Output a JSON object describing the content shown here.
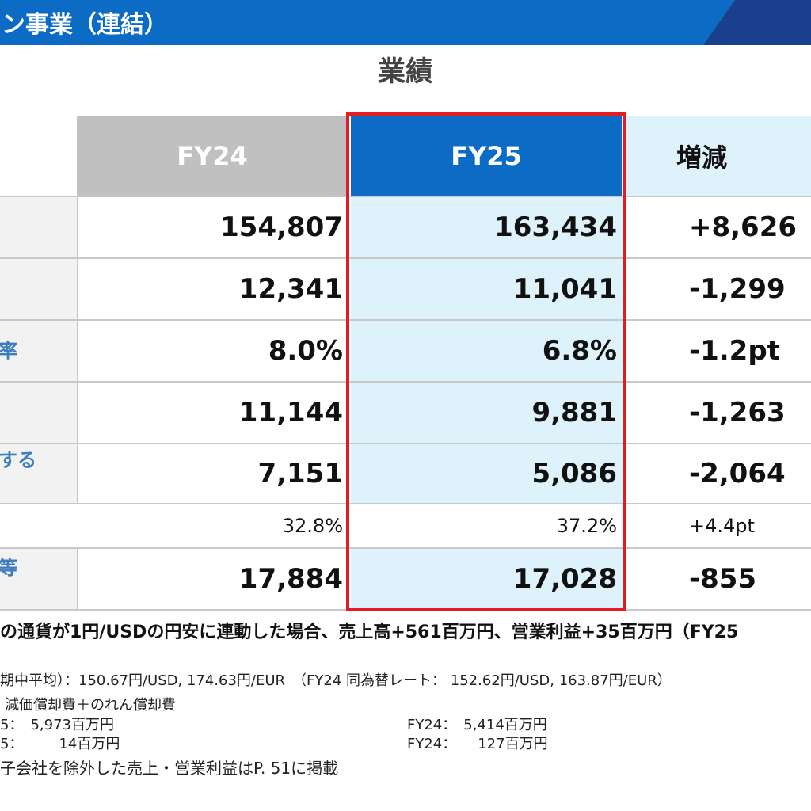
{
  "header": {
    "title": "ン事業（連結）"
  },
  "section_title": "業績",
  "table": {
    "columns": [
      "FY24",
      "FY25",
      "増減"
    ],
    "rows": [
      {
        "label": "",
        "fy24": "154,807",
        "fy25": "163,434",
        "change": "+8,626"
      },
      {
        "label": "",
        "fy24": "12,341",
        "fy25": "11,041",
        "change": "-1,299"
      },
      {
        "label": "率",
        "fy24": "8.0%",
        "fy25": "6.8%",
        "change": "-1.2pt"
      },
      {
        "label": "",
        "fy24": "11,144",
        "fy25": "9,881",
        "change": "-1,263"
      },
      {
        "label": "する",
        "fy24": "7,151",
        "fy25": "5,086",
        "change": "-2,064"
      },
      {
        "label": "",
        "fy24": "32.8%",
        "fy25": "37.2%",
        "change": "+4.4pt"
      },
      {
        "label": "等",
        "fy24": "17,884",
        "fy25": "17,028",
        "change": "-855"
      }
    ]
  },
  "notes": {
    "main": "の通貨が1円/USDの円安に連動した場合、売上高+561百万円、営業利益+35百万円（FY25",
    "rate": "期中平均）：150.67円/USD, 174.63円/EUR　（FY24 同為替レート： 152.62円/USD, 163.87円/EUR）",
    "depr_title": "減価償却費＋のれん償却費",
    "depr_fy25": "5：　5,973百万円",
    "depr_fy24": "FY24：　5,414百万円",
    "good_fy25": "5：　　　14百万円",
    "good_fy24": "FY24：　　127百万円",
    "excluded": "子会社を除外した売上・営業利益はP. 51に掲載"
  }
}
